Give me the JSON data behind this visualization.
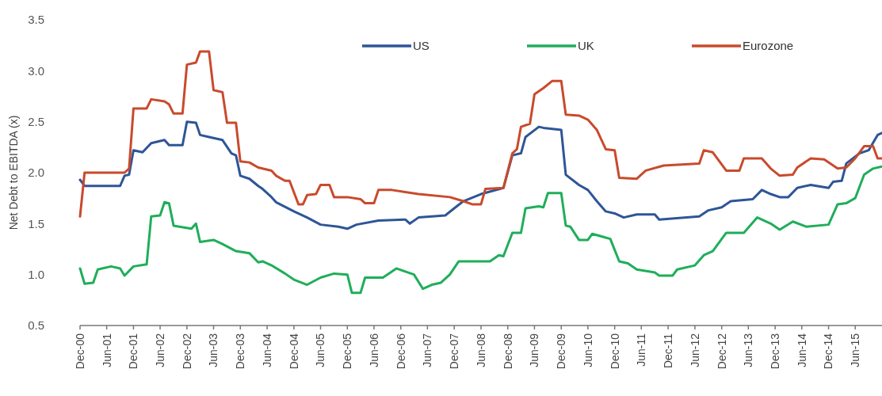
{
  "chart_data": {
    "type": "line",
    "ylabel": "Net Debt to EBITDA (x)",
    "legend": "top right",
    "grid": false,
    "line_style": "solid",
    "xlim": [
      "2000-12",
      "2015-12"
    ],
    "ylim": [
      0.5,
      3.5
    ],
    "yticks": [
      0.5,
      {
        "value": 1,
        "label": "1.0"
      },
      1.5,
      {
        "value": 2,
        "label": "2.0"
      },
      2.5,
      {
        "value": 3,
        "label": "3.0"
      },
      3.5
    ],
    "xticks": [
      {
        "value": "2000-12",
        "label": "Dec-00"
      },
      {
        "value": "2001-06",
        "label": "Jun-01"
      },
      {
        "value": "2001-12",
        "label": "Dec-01"
      },
      {
        "value": "2002-06",
        "label": "Jun-02"
      },
      {
        "value": "2002-12",
        "label": "Dec-02"
      },
      {
        "value": "2003-06",
        "label": "Jun-03"
      },
      {
        "value": "2003-12",
        "label": "Dec-03"
      },
      {
        "value": "2004-06",
        "label": "Jun-04"
      },
      {
        "value": "2004-12",
        "label": "Dec-04"
      },
      {
        "value": "2005-06",
        "label": "Jun-05"
      },
      {
        "value": "2005-12",
        "label": "Dec-05"
      },
      {
        "value": "2006-06",
        "label": "Jun-06"
      },
      {
        "value": "2006-12",
        "label": "Dec-06"
      },
      {
        "value": "2007-06",
        "label": "Jun-07"
      },
      {
        "value": "2007-12",
        "label": "Dec-07"
      },
      {
        "value": "2008-06",
        "label": "Jun-08"
      },
      {
        "value": "2008-12",
        "label": "Dec-08"
      },
      {
        "value": "2009-06",
        "label": "Jun-09"
      },
      {
        "value": "2009-12",
        "label": "Dec-09"
      },
      {
        "value": "2010-06",
        "label": "Jun-10"
      },
      {
        "value": "2010-12",
        "label": "Dec-10"
      },
      {
        "value": "2011-06",
        "label": "Jun-11"
      },
      {
        "value": "2011-12",
        "label": "Dec-11"
      },
      {
        "value": "2012-06",
        "label": "Jun-12"
      },
      {
        "value": "2012-12",
        "label": "Dec-12"
      },
      {
        "value": "2013-06",
        "label": "Jun-13"
      },
      {
        "value": "2013-12",
        "label": "Dec-13"
      },
      {
        "value": "2014-06",
        "label": "Jun-14"
      },
      {
        "value": "2014-12",
        "label": "Dec-14"
      },
      {
        "value": "2015-06",
        "label": "Jun-15"
      }
    ],
    "series": [
      {
        "name": "US",
        "color": "#2e5597",
        "x": [
          "2000-12",
          "2001-01",
          "2001-09",
          "2001-10",
          "2001-11",
          "2001-12",
          "2002-02",
          "2002-04",
          "2002-07",
          "2002-08",
          "2002-11",
          "2002-12",
          "2003-02",
          "2003-03",
          "2003-05",
          "2003-08",
          "2003-10",
          "2003-11",
          "2003-12",
          "2004-02",
          "2004-04",
          "2004-05",
          "2004-07",
          "2004-08",
          "2004-12",
          "2005-03",
          "2005-06",
          "2005-10",
          "2005-12",
          "2006-02",
          "2006-07",
          "2007-01",
          "2007-02",
          "2007-04",
          "2007-10",
          "2007-12",
          "2008-02",
          "2008-06",
          "2008-11",
          "2009-01",
          "2009-03",
          "2009-04",
          "2009-07",
          "2009-08",
          "2009-12",
          "2010-01",
          "2010-04",
          "2010-06",
          "2010-08",
          "2010-10",
          "2010-12",
          "2011-02",
          "2011-05",
          "2011-09",
          "2011-10",
          "2012-07",
          "2012-09",
          "2012-12",
          "2013-02",
          "2013-07",
          "2013-09",
          "2013-11",
          "2014-01",
          "2014-03",
          "2014-05",
          "2014-08",
          "2014-12",
          "2015-01",
          "2015-03",
          "2015-04",
          "2015-07",
          "2015-09",
          "2015-11",
          "2015-12"
        ],
        "values": [
          1.93,
          1.87,
          1.87,
          1.97,
          1.98,
          2.22,
          2.2,
          2.29,
          2.32,
          2.27,
          2.27,
          2.5,
          2.49,
          2.37,
          2.35,
          2.32,
          2.19,
          2.17,
          1.97,
          1.94,
          1.87,
          1.84,
          1.76,
          1.71,
          1.62,
          1.56,
          1.49,
          1.47,
          1.45,
          1.49,
          1.53,
          1.54,
          1.5,
          1.56,
          1.58,
          1.65,
          1.72,
          1.79,
          1.85,
          2.17,
          2.19,
          2.35,
          2.45,
          2.44,
          2.42,
          1.98,
          1.88,
          1.83,
          1.72,
          1.62,
          1.6,
          1.56,
          1.59,
          1.59,
          1.54,
          1.57,
          1.63,
          1.66,
          1.72,
          1.74,
          1.83,
          1.79,
          1.76,
          1.76,
          1.85,
          1.88,
          1.85,
          1.91,
          1.92,
          2.09,
          2.19,
          2.22,
          2.37,
          2.39
        ]
      },
      {
        "name": "UK",
        "color": "#1fae5a",
        "x": [
          "2000-12",
          "2001-01",
          "2001-03",
          "2001-04",
          "2001-07",
          "2001-09",
          "2001-10",
          "2001-12",
          "2002-03",
          "2002-04",
          "2002-06",
          "2002-07",
          "2002-08",
          "2002-09",
          "2003-01",
          "2003-02",
          "2003-03",
          "2003-06",
          "2003-08",
          "2003-11",
          "2004-02",
          "2004-04",
          "2004-05",
          "2004-07",
          "2004-10",
          "2004-12",
          "2005-03",
          "2005-06",
          "2005-09",
          "2005-12",
          "2006-01",
          "2006-03",
          "2006-04",
          "2006-08",
          "2006-11",
          "2007-01",
          "2007-03",
          "2007-05",
          "2007-07",
          "2007-09",
          "2007-11",
          "2008-01",
          "2008-08",
          "2008-10",
          "2008-11",
          "2009-01",
          "2009-03",
          "2009-04",
          "2009-07",
          "2009-08",
          "2009-09",
          "2009-12",
          "2010-01",
          "2010-02",
          "2010-04",
          "2010-06",
          "2010-07",
          "2010-11",
          "2011-01",
          "2011-03",
          "2011-05",
          "2011-09",
          "2011-10",
          "2012-01",
          "2012-02",
          "2012-06",
          "2012-08",
          "2012-10",
          "2013-01",
          "2013-05",
          "2013-08",
          "2013-11",
          "2014-01",
          "2014-04",
          "2014-07",
          "2014-12",
          "2015-02",
          "2015-04",
          "2015-06",
          "2015-08",
          "2015-10",
          "2015-12"
        ],
        "values": [
          1.06,
          0.91,
          0.92,
          1.05,
          1.08,
          1.06,
          0.99,
          1.08,
          1.1,
          1.57,
          1.58,
          1.71,
          1.7,
          1.48,
          1.45,
          1.5,
          1.32,
          1.34,
          1.3,
          1.23,
          1.21,
          1.12,
          1.13,
          1.09,
          1.01,
          0.95,
          0.9,
          0.97,
          1.01,
          1.0,
          0.82,
          0.82,
          0.97,
          0.97,
          1.06,
          1.03,
          1.0,
          0.86,
          0.9,
          0.92,
          1.0,
          1.13,
          1.13,
          1.19,
          1.18,
          1.41,
          1.41,
          1.65,
          1.67,
          1.66,
          1.8,
          1.8,
          1.48,
          1.47,
          1.34,
          1.34,
          1.4,
          1.35,
          1.13,
          1.11,
          1.05,
          1.02,
          0.99,
          0.99,
          1.05,
          1.09,
          1.19,
          1.23,
          1.41,
          1.41,
          1.56,
          1.5,
          1.44,
          1.52,
          1.47,
          1.49,
          1.69,
          1.7,
          1.75,
          1.98,
          2.04,
          2.06
        ]
      },
      {
        "name": "Eurozone",
        "color": "#c94a2c",
        "x": [
          "2000-12",
          "2001-01",
          "2001-10",
          "2001-11",
          "2001-12",
          "2002-03",
          "2002-04",
          "2002-07",
          "2002-08",
          "2002-09",
          "2002-11",
          "2002-12",
          "2003-02",
          "2003-03",
          "2003-05",
          "2003-06",
          "2003-08",
          "2003-09",
          "2003-11",
          "2003-12",
          "2004-02",
          "2004-04",
          "2004-07",
          "2004-08",
          "2004-10",
          "2004-11",
          "2005-01",
          "2005-02",
          "2005-03",
          "2005-05",
          "2005-06",
          "2005-08",
          "2005-09",
          "2005-12",
          "2006-03",
          "2006-04",
          "2006-06",
          "2006-07",
          "2006-10",
          "2007-04",
          "2007-11",
          "2008-02",
          "2008-04",
          "2008-06",
          "2008-07",
          "2008-11",
          "2009-01",
          "2009-02",
          "2009-03",
          "2009-05",
          "2009-06",
          "2009-08",
          "2009-10",
          "2009-12",
          "2010-01",
          "2010-04",
          "2010-06",
          "2010-08",
          "2010-10",
          "2010-12",
          "2011-01",
          "2011-05",
          "2011-07",
          "2011-11",
          "2012-07",
          "2012-08",
          "2012-10",
          "2013-01",
          "2013-04",
          "2013-05",
          "2013-09",
          "2013-11",
          "2014-01",
          "2014-04",
          "2014-05",
          "2014-08",
          "2014-11",
          "2015-02",
          "2015-04",
          "2015-06",
          "2015-08",
          "2015-10",
          "2015-11",
          "2015-12"
        ],
        "values": [
          1.57,
          2.0,
          2.0,
          2.04,
          2.63,
          2.63,
          2.72,
          2.7,
          2.67,
          2.58,
          2.58,
          3.06,
          3.08,
          3.19,
          3.19,
          2.81,
          2.79,
          2.49,
          2.49,
          2.11,
          2.1,
          2.05,
          2.02,
          1.97,
          1.92,
          1.92,
          1.69,
          1.69,
          1.78,
          1.79,
          1.88,
          1.88,
          1.76,
          1.76,
          1.74,
          1.7,
          1.7,
          1.83,
          1.83,
          1.79,
          1.76,
          1.72,
          1.69,
          1.69,
          1.84,
          1.85,
          2.19,
          2.23,
          2.45,
          2.48,
          2.77,
          2.83,
          2.9,
          2.9,
          2.57,
          2.56,
          2.52,
          2.42,
          2.23,
          2.22,
          1.95,
          1.94,
          2.02,
          2.07,
          2.09,
          2.22,
          2.2,
          2.02,
          2.02,
          2.14,
          2.14,
          2.04,
          1.97,
          1.98,
          2.05,
          2.14,
          2.13,
          2.04,
          2.05,
          2.14,
          2.26,
          2.26,
          2.14,
          2.14
        ]
      }
    ]
  }
}
